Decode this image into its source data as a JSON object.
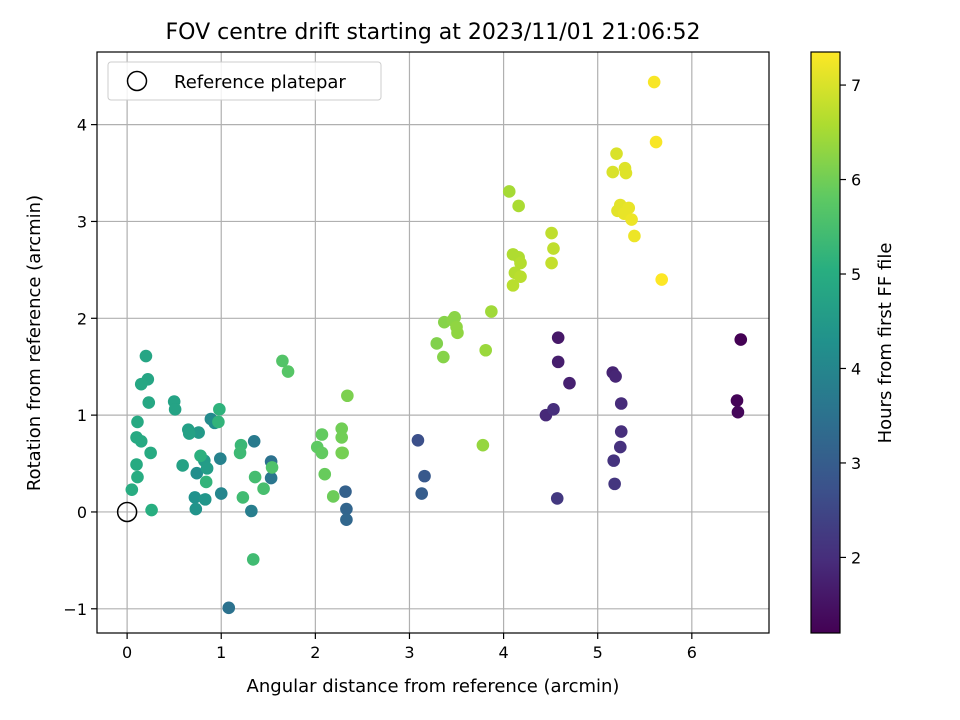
{
  "chart_data": {
    "type": "scatter",
    "title": "FOV centre drift starting at 2023/11/01 21:06:52",
    "xlabel": "Angular distance from reference (arcmin)",
    "ylabel": "Rotation from reference (arcmin)",
    "xlim": [
      -0.32,
      6.82
    ],
    "ylim": [
      -1.25,
      4.75
    ],
    "xticks": [
      "0",
      "1",
      "2",
      "3",
      "4",
      "5",
      "6"
    ],
    "yticks": [
      "−1",
      "0",
      "1",
      "2",
      "3",
      "4"
    ],
    "grid": true,
    "legend": {
      "placement": "top-left",
      "entries": [
        "Reference platepar"
      ]
    },
    "reference_point": {
      "x": 0,
      "y": 0
    },
    "colorbar": {
      "label": "Hours from first FF file",
      "range": [
        1.2,
        7.35
      ],
      "ticks": [
        "2",
        "3",
        "4",
        "5",
        "6",
        "7"
      ],
      "colormap": "viridis"
    },
    "points": [
      {
        "x": 6.52,
        "y": 1.78,
        "h": 1.2
      },
      {
        "x": 6.48,
        "y": 1.15,
        "h": 1.25
      },
      {
        "x": 6.49,
        "y": 1.03,
        "h": 1.3
      },
      {
        "x": 4.58,
        "y": 1.8,
        "h": 1.6
      },
      {
        "x": 4.58,
        "y": 1.55,
        "h": 1.7
      },
      {
        "x": 4.7,
        "y": 1.33,
        "h": 1.75
      },
      {
        "x": 4.45,
        "y": 1.0,
        "h": 1.9
      },
      {
        "x": 4.53,
        "y": 1.06,
        "h": 2.0
      },
      {
        "x": 4.57,
        "y": 0.14,
        "h": 2.2
      },
      {
        "x": 5.16,
        "y": 1.44,
        "h": 1.8
      },
      {
        "x": 5.19,
        "y": 1.4,
        "h": 1.85
      },
      {
        "x": 5.25,
        "y": 1.12,
        "h": 1.95
      },
      {
        "x": 5.25,
        "y": 0.83,
        "h": 2.0
      },
      {
        "x": 5.24,
        "y": 0.67,
        "h": 2.05
      },
      {
        "x": 5.17,
        "y": 0.53,
        "h": 2.1
      },
      {
        "x": 5.18,
        "y": 0.29,
        "h": 2.15
      },
      {
        "x": 3.09,
        "y": 0.74,
        "h": 2.7
      },
      {
        "x": 3.16,
        "y": 0.37,
        "h": 2.9
      },
      {
        "x": 3.13,
        "y": 0.19,
        "h": 3.0
      },
      {
        "x": 2.32,
        "y": 0.21,
        "h": 3.1
      },
      {
        "x": 2.33,
        "y": 0.03,
        "h": 3.2
      },
      {
        "x": 2.33,
        "y": -0.08,
        "h": 3.25
      },
      {
        "x": 1.53,
        "y": 0.52,
        "h": 3.5
      },
      {
        "x": 1.53,
        "y": 0.35,
        "h": 3.6
      },
      {
        "x": 1.35,
        "y": 0.73,
        "h": 3.7
      },
      {
        "x": 1.32,
        "y": 0.01,
        "h": 3.8
      },
      {
        "x": 1.08,
        "y": -0.99,
        "h": 3.5
      },
      {
        "x": 0.99,
        "y": 0.55,
        "h": 3.9
      },
      {
        "x": 1.0,
        "y": 0.19,
        "h": 4.0
      },
      {
        "x": 0.89,
        "y": 0.96,
        "h": 4.1
      },
      {
        "x": 0.93,
        "y": 0.92,
        "h": 4.2
      },
      {
        "x": 0.74,
        "y": 0.4,
        "h": 4.2
      },
      {
        "x": 0.72,
        "y": 0.15,
        "h": 4.3
      },
      {
        "x": 0.73,
        "y": 0.03,
        "h": 4.35
      },
      {
        "x": 0.83,
        "y": 0.13,
        "h": 4.4
      },
      {
        "x": 0.76,
        "y": 0.82,
        "h": 4.5
      },
      {
        "x": 0.82,
        "y": 0.53,
        "h": 4.55
      },
      {
        "x": 0.85,
        "y": 0.45,
        "h": 4.6
      },
      {
        "x": 0.65,
        "y": 0.85,
        "h": 4.65
      },
      {
        "x": 0.66,
        "y": 0.81,
        "h": 4.7
      },
      {
        "x": 0.59,
        "y": 0.48,
        "h": 4.7
      },
      {
        "x": 0.5,
        "y": 1.14,
        "h": 4.75
      },
      {
        "x": 0.51,
        "y": 1.06,
        "h": 4.75
      },
      {
        "x": 0.2,
        "y": 1.61,
        "h": 4.8
      },
      {
        "x": 0.22,
        "y": 1.37,
        "h": 4.8
      },
      {
        "x": 0.15,
        "y": 1.32,
        "h": 4.85
      },
      {
        "x": 0.23,
        "y": 1.13,
        "h": 4.85
      },
      {
        "x": 0.11,
        "y": 0.93,
        "h": 4.9
      },
      {
        "x": 0.1,
        "y": 0.77,
        "h": 4.9
      },
      {
        "x": 0.15,
        "y": 0.73,
        "h": 4.9
      },
      {
        "x": 0.25,
        "y": 0.61,
        "h": 4.95
      },
      {
        "x": 0.1,
        "y": 0.49,
        "h": 4.95
      },
      {
        "x": 0.11,
        "y": 0.36,
        "h": 5.0
      },
      {
        "x": 0.05,
        "y": 0.23,
        "h": 5.0
      },
      {
        "x": 0.26,
        "y": 0.02,
        "h": 5.05
      },
      {
        "x": 0.78,
        "y": 0.58,
        "h": 5.1
      },
      {
        "x": 0.98,
        "y": 1.06,
        "h": 5.15
      },
      {
        "x": 0.97,
        "y": 0.93,
        "h": 5.2
      },
      {
        "x": 0.84,
        "y": 0.31,
        "h": 5.2
      },
      {
        "x": 1.21,
        "y": 0.69,
        "h": 5.3
      },
      {
        "x": 1.2,
        "y": 0.61,
        "h": 5.35
      },
      {
        "x": 1.23,
        "y": 0.15,
        "h": 5.4
      },
      {
        "x": 1.36,
        "y": 0.36,
        "h": 5.45
      },
      {
        "x": 1.45,
        "y": 0.24,
        "h": 5.5
      },
      {
        "x": 1.34,
        "y": -0.49,
        "h": 5.4
      },
      {
        "x": 1.54,
        "y": 0.46,
        "h": 5.6
      },
      {
        "x": 1.65,
        "y": 1.56,
        "h": 5.65
      },
      {
        "x": 1.71,
        "y": 1.45,
        "h": 5.7
      },
      {
        "x": 2.02,
        "y": 0.67,
        "h": 5.8
      },
      {
        "x": 2.07,
        "y": 0.8,
        "h": 5.85
      },
      {
        "x": 2.07,
        "y": 0.61,
        "h": 5.85
      },
      {
        "x": 2.1,
        "y": 0.39,
        "h": 5.9
      },
      {
        "x": 2.19,
        "y": 0.16,
        "h": 5.95
      },
      {
        "x": 2.28,
        "y": 0.86,
        "h": 6.0
      },
      {
        "x": 2.28,
        "y": 0.77,
        "h": 6.0
      },
      {
        "x": 2.28,
        "y": 0.61,
        "h": 6.05
      },
      {
        "x": 2.29,
        "y": 0.61,
        "h": 6.05
      },
      {
        "x": 2.34,
        "y": 1.2,
        "h": 6.1
      },
      {
        "x": 3.29,
        "y": 1.74,
        "h": 6.15
      },
      {
        "x": 3.36,
        "y": 1.6,
        "h": 6.2
      },
      {
        "x": 3.37,
        "y": 1.96,
        "h": 6.2
      },
      {
        "x": 3.46,
        "y": 1.98,
        "h": 6.25
      },
      {
        "x": 3.48,
        "y": 2.01,
        "h": 6.25
      },
      {
        "x": 3.5,
        "y": 1.91,
        "h": 6.3
      },
      {
        "x": 3.51,
        "y": 1.85,
        "h": 6.3
      },
      {
        "x": 3.78,
        "y": 0.69,
        "h": 6.35
      },
      {
        "x": 3.81,
        "y": 1.67,
        "h": 6.4
      },
      {
        "x": 3.87,
        "y": 2.07,
        "h": 6.45
      },
      {
        "x": 4.06,
        "y": 3.31,
        "h": 6.5
      },
      {
        "x": 4.16,
        "y": 3.16,
        "h": 6.55
      },
      {
        "x": 4.1,
        "y": 2.66,
        "h": 6.6
      },
      {
        "x": 4.16,
        "y": 2.63,
        "h": 6.6
      },
      {
        "x": 4.18,
        "y": 2.57,
        "h": 6.65
      },
      {
        "x": 4.12,
        "y": 2.47,
        "h": 6.65
      },
      {
        "x": 4.18,
        "y": 2.43,
        "h": 6.7
      },
      {
        "x": 4.1,
        "y": 2.34,
        "h": 6.7
      },
      {
        "x": 4.51,
        "y": 2.88,
        "h": 6.75
      },
      {
        "x": 4.53,
        "y": 2.72,
        "h": 6.75
      },
      {
        "x": 4.51,
        "y": 2.57,
        "h": 6.8
      },
      {
        "x": 5.2,
        "y": 3.7,
        "h": 7.0
      },
      {
        "x": 5.29,
        "y": 3.55,
        "h": 7.05
      },
      {
        "x": 5.3,
        "y": 3.5,
        "h": 7.05
      },
      {
        "x": 5.16,
        "y": 3.51,
        "h": 7.0
      },
      {
        "x": 5.24,
        "y": 3.17,
        "h": 7.1
      },
      {
        "x": 5.21,
        "y": 3.11,
        "h": 7.1
      },
      {
        "x": 5.28,
        "y": 3.08,
        "h": 7.15
      },
      {
        "x": 5.33,
        "y": 3.14,
        "h": 7.15
      },
      {
        "x": 5.36,
        "y": 3.02,
        "h": 7.2
      },
      {
        "x": 5.39,
        "y": 2.85,
        "h": 7.2
      },
      {
        "x": 5.6,
        "y": 4.44,
        "h": 7.3
      },
      {
        "x": 5.62,
        "y": 3.82,
        "h": 7.3
      },
      {
        "x": 5.68,
        "y": 2.4,
        "h": 7.35
      }
    ]
  }
}
